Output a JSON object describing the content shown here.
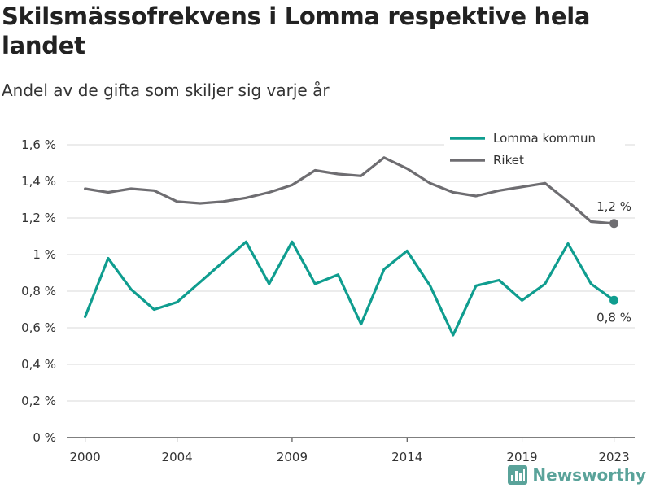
{
  "header": {
    "title": "Skilsmässofrekvens i Lomma respektive hela landet",
    "subtitle": "Andel av de gifta som skiljer sig varje år"
  },
  "brand": {
    "name": "Newsworthy",
    "icon": "newsworthy-logo-icon",
    "color": "#5aa39a"
  },
  "chart_data": {
    "type": "line",
    "x": [
      2000,
      2001,
      2002,
      2003,
      2004,
      2005,
      2006,
      2007,
      2008,
      2009,
      2010,
      2011,
      2012,
      2013,
      2014,
      2015,
      2016,
      2017,
      2018,
      2019,
      2020,
      2021,
      2022,
      2023
    ],
    "x_ticks": [
      2000,
      2004,
      2009,
      2014,
      2019,
      2023
    ],
    "x_tick_labels": [
      "2000",
      "2004",
      "2009",
      "2014",
      "2019",
      "2023"
    ],
    "xlim": [
      1999.2,
      2023.9
    ],
    "ylim": [
      0,
      1.6
    ],
    "y_ticks": [
      0,
      0.2,
      0.4,
      0.6,
      0.8,
      1.0,
      1.2,
      1.4,
      1.6
    ],
    "y_tick_labels": [
      "0 %",
      "0,2 %",
      "0,4 %",
      "0,6 %",
      "0,8 %",
      "1 %",
      "1,2 %",
      "1,4 %",
      "1,6 %"
    ],
    "grid": true,
    "legend_position": "top-right",
    "series": [
      {
        "name": "Lomma kommun",
        "color": "#0f9d8f",
        "values": [
          0.66,
          0.98,
          0.81,
          0.7,
          0.74,
          0.85,
          0.96,
          1.07,
          0.84,
          1.07,
          0.84,
          0.89,
          0.62,
          0.92,
          1.02,
          0.83,
          0.56,
          0.83,
          0.86,
          0.75,
          0.84,
          1.06,
          0.84,
          0.75
        ],
        "end_label": "0,8 %",
        "end_label_position": "below"
      },
      {
        "name": "Riket",
        "color": "#6e6d71",
        "values": [
          1.36,
          1.34,
          1.36,
          1.35,
          1.29,
          1.28,
          1.29,
          1.31,
          1.34,
          1.38,
          1.46,
          1.44,
          1.43,
          1.53,
          1.47,
          1.39,
          1.34,
          1.32,
          1.35,
          1.37,
          1.39,
          1.29,
          1.18,
          1.17
        ],
        "end_label": "1,2 %",
        "end_label_position": "above"
      }
    ]
  }
}
